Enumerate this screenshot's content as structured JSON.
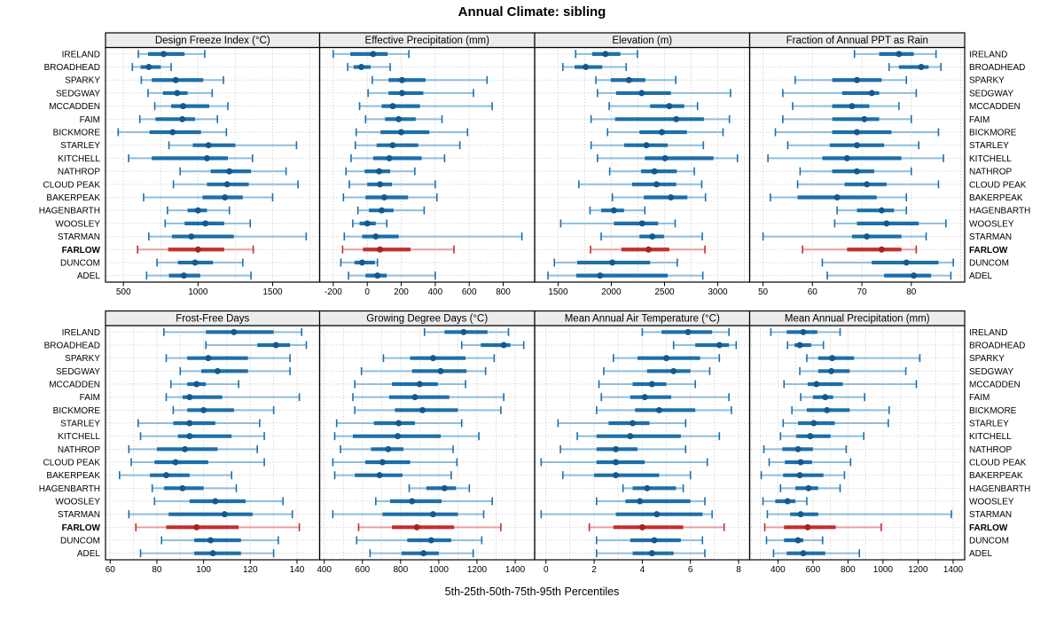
{
  "title": "Annual Climate: sibling",
  "footer": "5th-25th-50th-75th-95th Percentiles",
  "highlight_station": "FARLOW",
  "stations": [
    "IRELAND",
    "BROADHEAD",
    "SPARKY",
    "SEDGWAY",
    "MCCADDEN",
    "FAIM",
    "BICKMORE",
    "STARLEY",
    "KITCHELL",
    "NATHROP",
    "CLOUD PEAK",
    "BAKERPEAK",
    "HAGENBARTH",
    "WOOSLEY",
    "STARMAN",
    "FARLOW",
    "DUNCOM",
    "ADEL"
  ],
  "colors": {
    "blue": "#1d6fa9",
    "blue_light": "#8fbedd",
    "blue_dot": "#14598e",
    "red": "#c12f2f",
    "red_light": "#e6a0a0",
    "red_dot": "#a82222",
    "grid": "#c6c6c6",
    "strip_bg": "#ececec"
  },
  "chart_data": {
    "type": "interval-dotplot",
    "percentiles": [
      5,
      25,
      50,
      75,
      95
    ],
    "legend_position": "none",
    "grid_on": true,
    "panels": [
      {
        "title": "Design Freeze Index (°C)",
        "xlim": [
          380,
          1815
        ],
        "ticks": [
          500,
          1000,
          1500
        ],
        "grid": {
          "start": 500,
          "step": 250,
          "end": 1750
        },
        "values": [
          [
            600,
            665,
            770,
            910,
            1045
          ],
          [
            560,
            615,
            670,
            750,
            820
          ],
          [
            620,
            690,
            850,
            1035,
            1170
          ],
          [
            665,
            765,
            860,
            930,
            1095
          ],
          [
            710,
            820,
            900,
            1075,
            1200
          ],
          [
            610,
            715,
            895,
            980,
            1130
          ],
          [
            465,
            675,
            830,
            1020,
            1190
          ],
          [
            805,
            965,
            1070,
            1250,
            1660
          ],
          [
            535,
            690,
            1060,
            1200,
            1365
          ],
          [
            880,
            1085,
            1210,
            1355,
            1590
          ],
          [
            835,
            1060,
            1195,
            1340,
            1670
          ],
          [
            635,
            1030,
            1180,
            1300,
            1500
          ],
          [
            795,
            930,
            1000,
            1060,
            1210
          ],
          [
            780,
            910,
            1050,
            1175,
            1350
          ],
          [
            670,
            825,
            955,
            1240,
            1725
          ],
          [
            595,
            800,
            1000,
            1175,
            1370
          ],
          [
            725,
            865,
            980,
            1100,
            1300
          ],
          [
            655,
            805,
            905,
            1015,
            1355
          ]
        ]
      },
      {
        "title": "Effective Precipitation (mm)",
        "xlim": [
          -280,
          985
        ],
        "ticks": [
          -200,
          0,
          200,
          400,
          600,
          800
        ],
        "grid": {
          "start": -200,
          "step": 200,
          "end": 800
        },
        "values": [
          [
            -200,
            -100,
            35,
            120,
            245
          ],
          [
            -115,
            -80,
            -35,
            20,
            135
          ],
          [
            30,
            125,
            205,
            343,
            705
          ],
          [
            5,
            125,
            205,
            330,
            625
          ],
          [
            -45,
            85,
            150,
            310,
            735
          ],
          [
            -10,
            105,
            185,
            285,
            440
          ],
          [
            -65,
            78,
            200,
            365,
            590
          ],
          [
            -70,
            55,
            150,
            300,
            545
          ],
          [
            -95,
            35,
            130,
            320,
            455
          ],
          [
            -125,
            -15,
            70,
            135,
            280
          ],
          [
            -105,
            0,
            75,
            145,
            400
          ],
          [
            -140,
            -10,
            100,
            240,
            410
          ],
          [
            -55,
            10,
            85,
            155,
            335
          ],
          [
            -85,
            -45,
            0,
            50,
            115
          ],
          [
            -135,
            -30,
            50,
            185,
            910
          ],
          [
            -145,
            -25,
            75,
            255,
            510
          ],
          [
            -155,
            -75,
            -30,
            45,
            60
          ],
          [
            -110,
            -10,
            60,
            115,
            400
          ]
        ]
      },
      {
        "title": "Elevation (m)",
        "xlim": [
          1280,
          3300
        ],
        "ticks": [
          1500,
          2000,
          2500,
          3000
        ],
        "grid": {
          "start": 1500,
          "step": 250,
          "end": 3250
        },
        "values": [
          [
            1665,
            1820,
            1945,
            2085,
            2245
          ],
          [
            1545,
            1655,
            1760,
            1915,
            2140
          ],
          [
            1855,
            1995,
            2165,
            2320,
            2605
          ],
          [
            1870,
            2045,
            2285,
            2560,
            3120
          ],
          [
            1980,
            2365,
            2545,
            2685,
            2810
          ],
          [
            1810,
            2035,
            2610,
            2870,
            3110
          ],
          [
            1965,
            2265,
            2475,
            2710,
            3050
          ],
          [
            1810,
            2120,
            2330,
            2530,
            2865
          ],
          [
            1870,
            2315,
            2505,
            2960,
            3185
          ],
          [
            1985,
            2280,
            2405,
            2615,
            2780
          ],
          [
            1695,
            2195,
            2425,
            2610,
            2850
          ],
          [
            2010,
            2305,
            2560,
            2715,
            2885
          ],
          [
            1800,
            1905,
            2025,
            2120,
            2315
          ],
          [
            1525,
            2025,
            2290,
            2440,
            2600
          ],
          [
            1905,
            2265,
            2385,
            2495,
            2855
          ],
          [
            1805,
            2095,
            2350,
            2545,
            2880
          ],
          [
            1465,
            1680,
            2010,
            2365,
            2620
          ],
          [
            1405,
            1670,
            1895,
            2530,
            2860
          ]
        ]
      },
      {
        "title": "Fraction of Annual PPT as Rain",
        "xlim": [
          47.3,
          90.8
        ],
        "ticks": [
          50,
          60,
          70,
          80
        ],
        "grid": {
          "start": 50,
          "step": 10,
          "end": 90
        },
        "values": [
          [
            68.5,
            73.5,
            77.5,
            80.5,
            85
          ],
          [
            75.5,
            77.5,
            82,
            83.5,
            86
          ],
          [
            56.5,
            64,
            69,
            74,
            79
          ],
          [
            54,
            66,
            72,
            73.5,
            81
          ],
          [
            56,
            64,
            68,
            71.5,
            77.5
          ],
          [
            54,
            64,
            70.5,
            73.5,
            80
          ],
          [
            52.5,
            64,
            69,
            76,
            85.5
          ],
          [
            55,
            63.5,
            69,
            74.5,
            81.5
          ],
          [
            51,
            62,
            67,
            78,
            86.5
          ],
          [
            57.5,
            64,
            69,
            72.5,
            80
          ],
          [
            57,
            66.5,
            71,
            75,
            85.5
          ],
          [
            51.5,
            57,
            65,
            73,
            79
          ],
          [
            65,
            69,
            74,
            76.5,
            79
          ],
          [
            64.5,
            69,
            75,
            81.5,
            87
          ],
          [
            50,
            68,
            71,
            78,
            83
          ],
          [
            58,
            67,
            74,
            78,
            81
          ],
          [
            62,
            72,
            79,
            85.5,
            88.5
          ],
          [
            63,
            74.5,
            80.5,
            84,
            88
          ]
        ]
      },
      {
        "title": "Frost-Free Days",
        "xlim": [
          58,
          149.7
        ],
        "ticks": [
          60,
          80,
          100,
          120,
          140
        ],
        "grid": {
          "start": 60,
          "step": 10,
          "end": 140
        },
        "values": [
          [
            83,
            101,
            113,
            130,
            142
          ],
          [
            101,
            123,
            131,
            137,
            144
          ],
          [
            84,
            93,
            102,
            119,
            137
          ],
          [
            90,
            99,
            106,
            119,
            137
          ],
          [
            86,
            93,
            97,
            101,
            115
          ],
          [
            84,
            91,
            94,
            108,
            141
          ],
          [
            87,
            93,
            100,
            113,
            130
          ],
          [
            72,
            87,
            94,
            105,
            124
          ],
          [
            73,
            89,
            94,
            112,
            126
          ],
          [
            68,
            80,
            92,
            106,
            123
          ],
          [
            69,
            79,
            88,
            102,
            126
          ],
          [
            64,
            77,
            84,
            94,
            112
          ],
          [
            78,
            83,
            91,
            100,
            114
          ],
          [
            79,
            94,
            105,
            118,
            134
          ],
          [
            68,
            85,
            109,
            121,
            138
          ],
          [
            71,
            84,
            97,
            115,
            141
          ],
          [
            82,
            96,
            103,
            116,
            132
          ],
          [
            73,
            96,
            104,
            116,
            130
          ]
        ]
      },
      {
        "title": "Growing Degree Days (°C)",
        "xlim": [
          376,
          1502
        ],
        "ticks": [
          400,
          600,
          800,
          1000,
          1200,
          1400
        ],
        "grid": {
          "start": 400,
          "step": 100,
          "end": 1500
        },
        "values": [
          [
            925,
            1030,
            1130,
            1255,
            1365
          ],
          [
            1120,
            1220,
            1340,
            1375,
            1445
          ],
          [
            710,
            850,
            970,
            1140,
            1290
          ],
          [
            595,
            860,
            1010,
            1145,
            1245
          ],
          [
            560,
            755,
            900,
            995,
            1140
          ],
          [
            550,
            740,
            875,
            1055,
            1340
          ],
          [
            560,
            770,
            915,
            1100,
            1325
          ],
          [
            465,
            660,
            790,
            875,
            1120
          ],
          [
            455,
            550,
            785,
            1010,
            1210
          ],
          [
            485,
            645,
            735,
            815,
            1075
          ],
          [
            445,
            615,
            705,
            850,
            1095
          ],
          [
            455,
            560,
            690,
            810,
            1065
          ],
          [
            845,
            935,
            1030,
            1090,
            1160
          ],
          [
            670,
            745,
            860,
            1015,
            1280
          ],
          [
            445,
            705,
            970,
            1100,
            1235
          ],
          [
            580,
            755,
            885,
            1080,
            1325
          ],
          [
            570,
            835,
            960,
            1065,
            1225
          ],
          [
            640,
            805,
            920,
            1000,
            1180
          ]
        ]
      },
      {
        "title": "Mean Annual Air Temperature (°C)",
        "xlim": [
          -0.47,
          8.46
        ],
        "ticks": [
          0,
          2,
          4,
          6,
          8
        ],
        "grid": {
          "start": 0,
          "step": 1,
          "end": 8
        },
        "values": [
          [
            4.0,
            4.8,
            5.9,
            6.9,
            7.6
          ],
          [
            5.3,
            6.2,
            7.2,
            7.6,
            7.9
          ],
          [
            2.8,
            3.8,
            5.0,
            6.4,
            7.2
          ],
          [
            2.4,
            4.2,
            5.3,
            6.0,
            6.8
          ],
          [
            2.2,
            3.6,
            4.4,
            5.0,
            6.2
          ],
          [
            2.3,
            3.5,
            4.1,
            5.2,
            7.6
          ],
          [
            2.1,
            3.7,
            4.7,
            6.2,
            7.7
          ],
          [
            0.5,
            2.6,
            3.6,
            4.3,
            5.8
          ],
          [
            1.3,
            2.1,
            3.5,
            5.6,
            7.2
          ],
          [
            0.6,
            2.1,
            2.9,
            3.8,
            5.8
          ],
          [
            -0.2,
            2.1,
            2.9,
            4.1,
            6.7
          ],
          [
            0.7,
            2.0,
            2.9,
            4.7,
            6.0
          ],
          [
            3.2,
            3.6,
            4.2,
            5.4,
            5.7
          ],
          [
            2.1,
            3.3,
            3.9,
            6.0,
            6.6
          ],
          [
            -0.2,
            2.9,
            4.6,
            6.5,
            6.9
          ],
          [
            1.8,
            2.8,
            4.0,
            5.7,
            7.4
          ],
          [
            2.1,
            3.5,
            4.5,
            5.6,
            6.5
          ],
          [
            2.1,
            3.6,
            4.4,
            5.3,
            6.6
          ]
        ]
      },
      {
        "title": "Mean Annual Precipitation (mm)",
        "xlim": [
          239,
          1466
        ],
        "ticks": [
          400,
          600,
          800,
          1000,
          1200,
          1400
        ],
        "grid": {
          "start": 300,
          "step": 100,
          "end": 1400
        },
        "values": [
          [
            360,
            450,
            545,
            625,
            755
          ],
          [
            455,
            495,
            525,
            590,
            660
          ],
          [
            565,
            630,
            710,
            835,
            1210
          ],
          [
            525,
            630,
            705,
            810,
            1130
          ],
          [
            435,
            570,
            620,
            770,
            1190
          ],
          [
            530,
            600,
            670,
            715,
            895
          ],
          [
            480,
            565,
            680,
            810,
            1035
          ],
          [
            430,
            515,
            605,
            725,
            1030
          ],
          [
            415,
            505,
            585,
            700,
            890
          ],
          [
            320,
            425,
            515,
            600,
            790
          ],
          [
            350,
            440,
            530,
            595,
            815
          ],
          [
            305,
            430,
            525,
            660,
            780
          ],
          [
            415,
            500,
            575,
            630,
            755
          ],
          [
            315,
            385,
            455,
            500,
            565
          ],
          [
            340,
            470,
            530,
            630,
            1390
          ],
          [
            325,
            435,
            570,
            730,
            990
          ],
          [
            335,
            435,
            515,
            545,
            655
          ],
          [
            375,
            450,
            545,
            670,
            865
          ]
        ]
      }
    ]
  }
}
